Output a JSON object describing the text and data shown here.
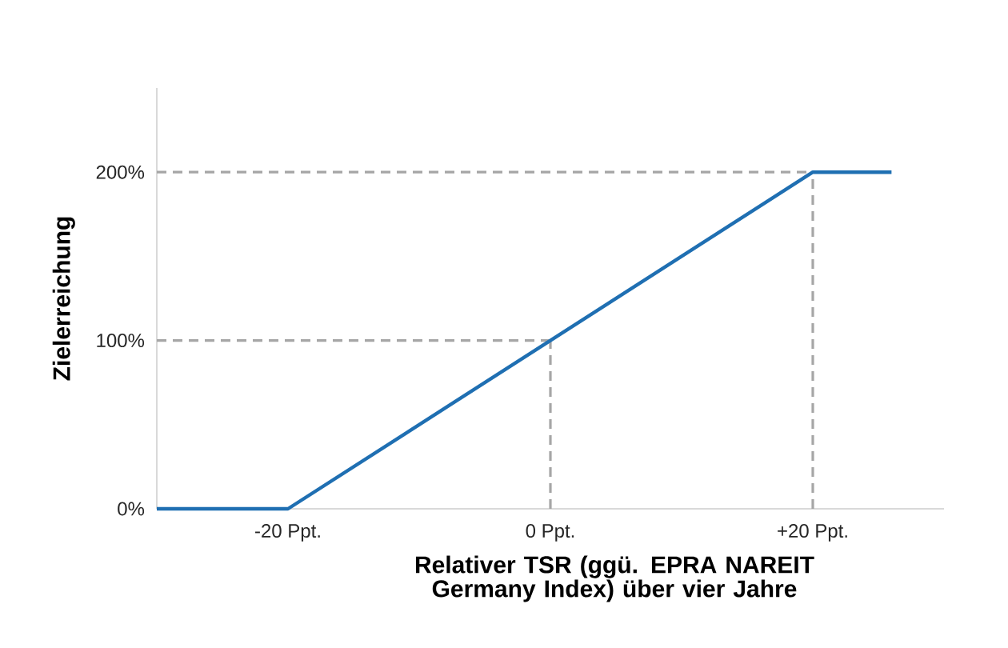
{
  "chart_data": {
    "type": "line",
    "xlabel": "Relativer TSR (ggü. EPRA NAREIT Germany Index) über vier Jahre",
    "ylabel": "Zielerreichung",
    "x": [
      -30,
      -20,
      20,
      26
    ],
    "series": [
      {
        "color": "#1f6fb2",
        "values": [
          0,
          0,
          200,
          200
        ]
      }
    ],
    "xlim": [
      -30,
      30
    ],
    "ylim": [
      0,
      250
    ],
    "xticks": [
      {
        "value": -20,
        "label": "-20 Ppt."
      },
      {
        "value": 0,
        "label": "0 Ppt."
      },
      {
        "value": 20,
        "label": "+20 Ppt."
      }
    ],
    "yticks": [
      {
        "value": 0,
        "label": "0%"
      },
      {
        "value": 100,
        "label": "100%"
      },
      {
        "value": 200,
        "label": "200%"
      }
    ],
    "ref_lines": [
      {
        "axis": "y",
        "value": 100,
        "color": "#a6a6a6",
        "line_style": "dashed"
      },
      {
        "axis": "y",
        "value": 200,
        "color": "#a6a6a6",
        "line_style": "dashed"
      },
      {
        "axis": "x",
        "value": 0,
        "color": "#a6a6a6",
        "line_style": "dashed"
      },
      {
        "axis": "x",
        "value": 20,
        "color": "#a6a6a6",
        "line_style": "dashed"
      }
    ],
    "grid": false,
    "marker": "none",
    "line_style": "solid"
  }
}
